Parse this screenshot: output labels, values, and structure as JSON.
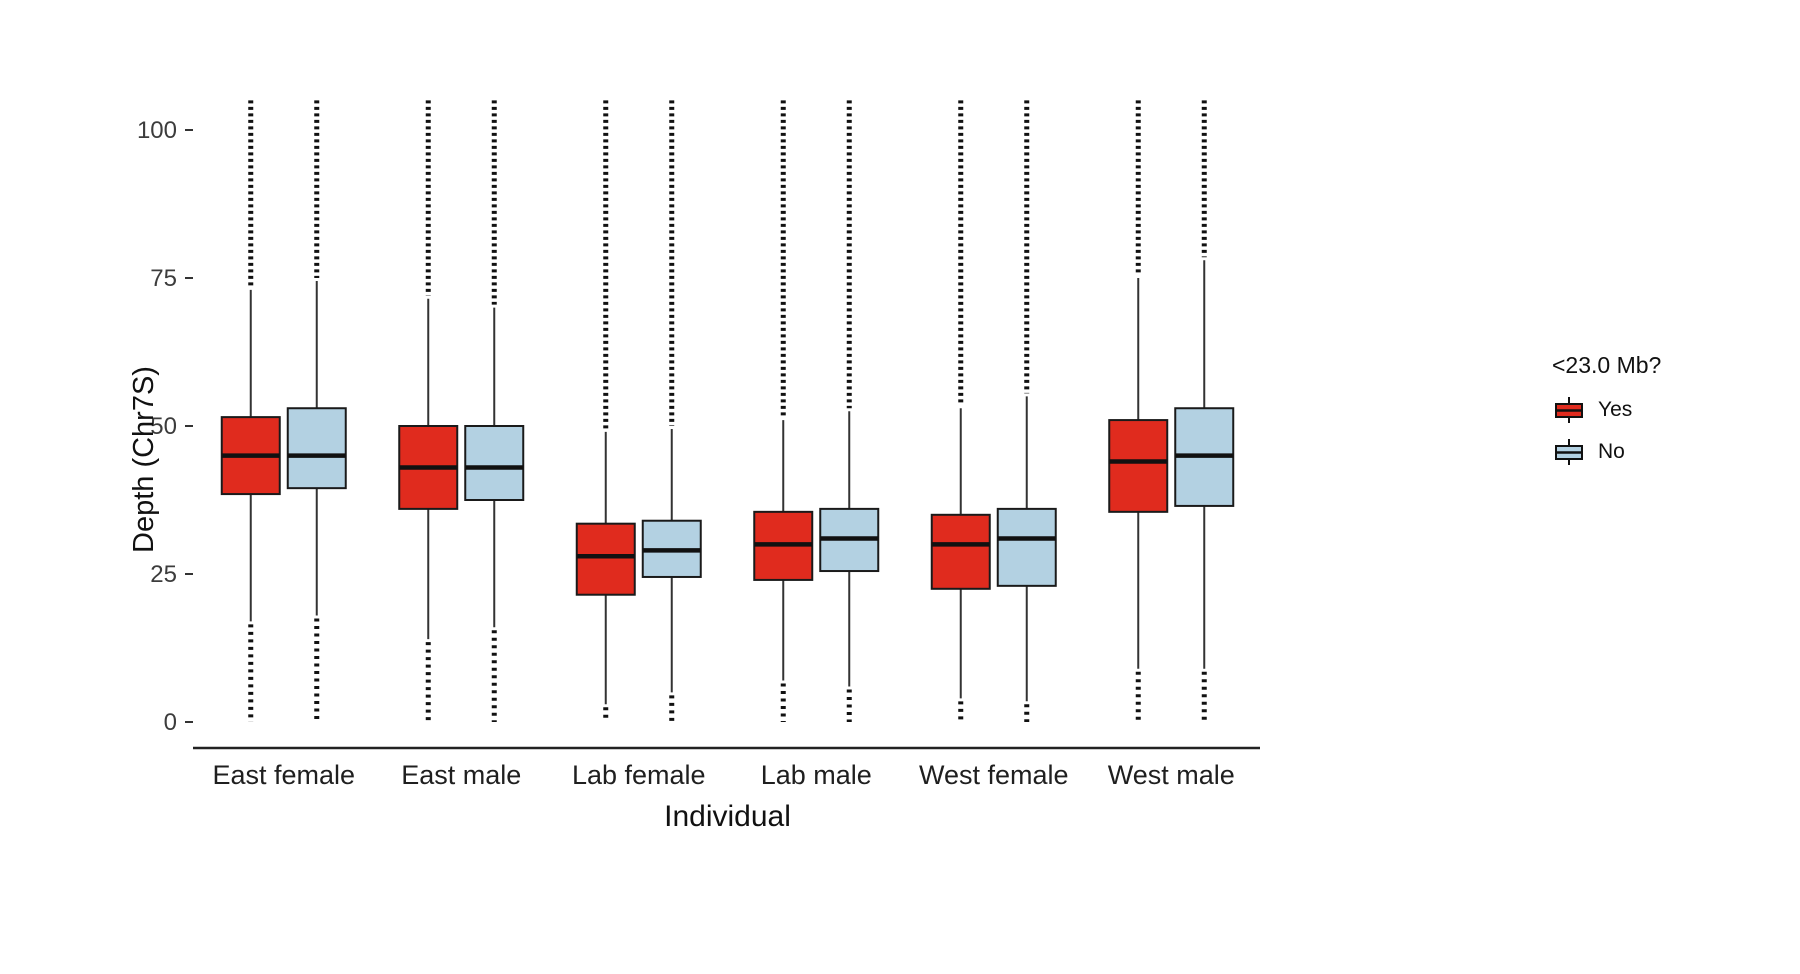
{
  "chart_data": {
    "type": "boxplot",
    "title": "",
    "xlabel": "Individual",
    "ylabel": "Depth (Chr7S)",
    "ylim": [
      0,
      105
    ],
    "yticks": [
      0,
      25,
      50,
      75,
      100
    ],
    "grid": false,
    "categories": [
      "East female",
      "East male",
      "Lab female",
      "Lab male",
      "West female",
      "West male"
    ],
    "legend": {
      "title": "<23.0 Mb?",
      "position": "right",
      "entries": [
        {
          "label": "Yes",
          "color": "#e02b1e"
        },
        {
          "label": "No",
          "color": "#b3d1e2"
        }
      ]
    },
    "series": [
      {
        "name": "Yes",
        "color": "#e02b1e",
        "boxes": [
          {
            "category": "East female",
            "q1": 38.5,
            "median": 45,
            "q3": 51.5,
            "whisker_low": 17,
            "whisker_high": 73,
            "outlier_low": 0,
            "outlier_high": 105
          },
          {
            "category": "East male",
            "q1": 36,
            "median": 43,
            "q3": 50,
            "whisker_low": 14,
            "whisker_high": 71.5,
            "outlier_low": 0,
            "outlier_high": 105
          },
          {
            "category": "Lab female",
            "q1": 21.5,
            "median": 28,
            "q3": 33.5,
            "whisker_low": 3,
            "whisker_high": 49,
            "outlier_low": 0,
            "outlier_high": 105
          },
          {
            "category": "Lab male",
            "q1": 24,
            "median": 30,
            "q3": 35.5,
            "whisker_low": 7,
            "whisker_high": 51,
            "outlier_low": 0,
            "outlier_high": 105
          },
          {
            "category": "West female",
            "q1": 22.5,
            "median": 30,
            "q3": 35,
            "whisker_low": 4,
            "whisker_high": 53,
            "outlier_low": 0,
            "outlier_high": 105
          },
          {
            "category": "West male",
            "q1": 35.5,
            "median": 44,
            "q3": 51,
            "whisker_low": 9,
            "whisker_high": 75,
            "outlier_low": 0,
            "outlier_high": 105
          }
        ]
      },
      {
        "name": "No",
        "color": "#b3d1e2",
        "boxes": [
          {
            "category": "East female",
            "q1": 39.5,
            "median": 45,
            "q3": 53,
            "whisker_low": 18,
            "whisker_high": 74.5,
            "outlier_low": 0,
            "outlier_high": 105
          },
          {
            "category": "East male",
            "q1": 37.5,
            "median": 43,
            "q3": 50,
            "whisker_low": 16,
            "whisker_high": 70,
            "outlier_low": 0,
            "outlier_high": 105
          },
          {
            "category": "Lab female",
            "q1": 24.5,
            "median": 29,
            "q3": 34,
            "whisker_low": 5,
            "whisker_high": 49.5,
            "outlier_low": 0,
            "outlier_high": 105
          },
          {
            "category": "Lab male",
            "q1": 25.5,
            "median": 31,
            "q3": 36,
            "whisker_low": 6,
            "whisker_high": 52.5,
            "outlier_low": 0,
            "outlier_high": 105
          },
          {
            "category": "West female",
            "q1": 23,
            "median": 31,
            "q3": 36,
            "whisker_low": 3.5,
            "whisker_high": 55,
            "outlier_low": 0,
            "outlier_high": 105
          },
          {
            "category": "West male",
            "q1": 36.5,
            "median": 45,
            "q3": 53,
            "whisker_low": 9,
            "whisker_high": 78,
            "outlier_low": 0,
            "outlier_high": 105
          }
        ]
      }
    ]
  }
}
